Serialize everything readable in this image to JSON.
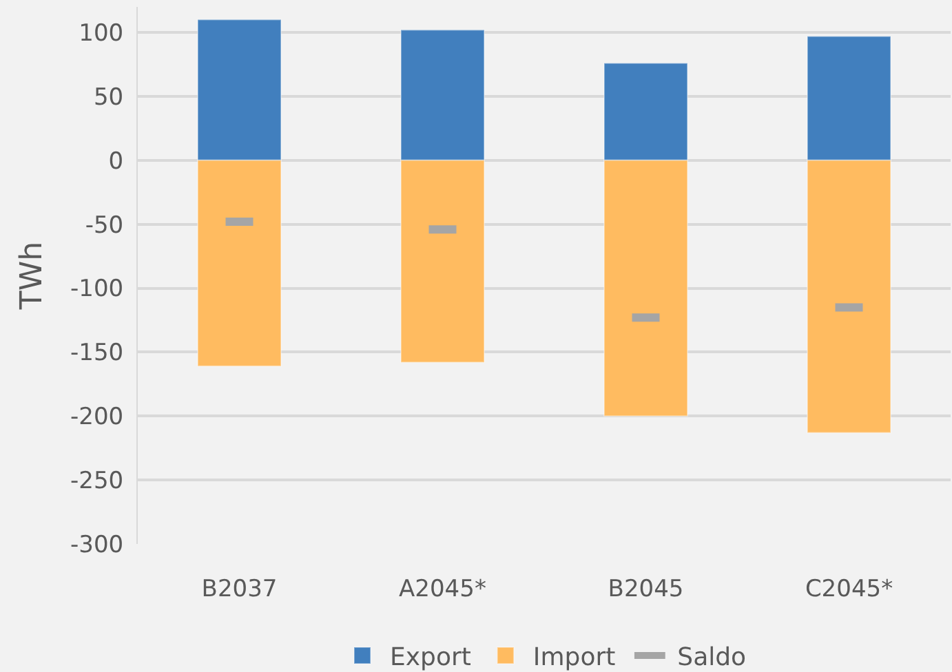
{
  "chart_data": {
    "type": "bar",
    "stacked": true,
    "ylabel": "TWh",
    "categories": [
      "B2037",
      "A2045*",
      "B2045",
      "C2045*"
    ],
    "series": [
      {
        "name": "Export",
        "color": "#417fbe",
        "values": [
          110,
          102,
          76,
          97
        ]
      },
      {
        "name": "Import",
        "color": "#ffbb60",
        "values": [
          -161,
          -158,
          -200,
          -213
        ]
      },
      {
        "name": "Saldo",
        "type": "scatter",
        "color": "#a5a5a5",
        "values": [
          -48,
          -54,
          -123,
          -115
        ]
      }
    ],
    "ylim": [
      -300,
      120
    ],
    "yticks": [
      -300,
      -250,
      -200,
      -150,
      -100,
      -50,
      0,
      50,
      100
    ],
    "grid": "y",
    "legend": "bottom"
  }
}
